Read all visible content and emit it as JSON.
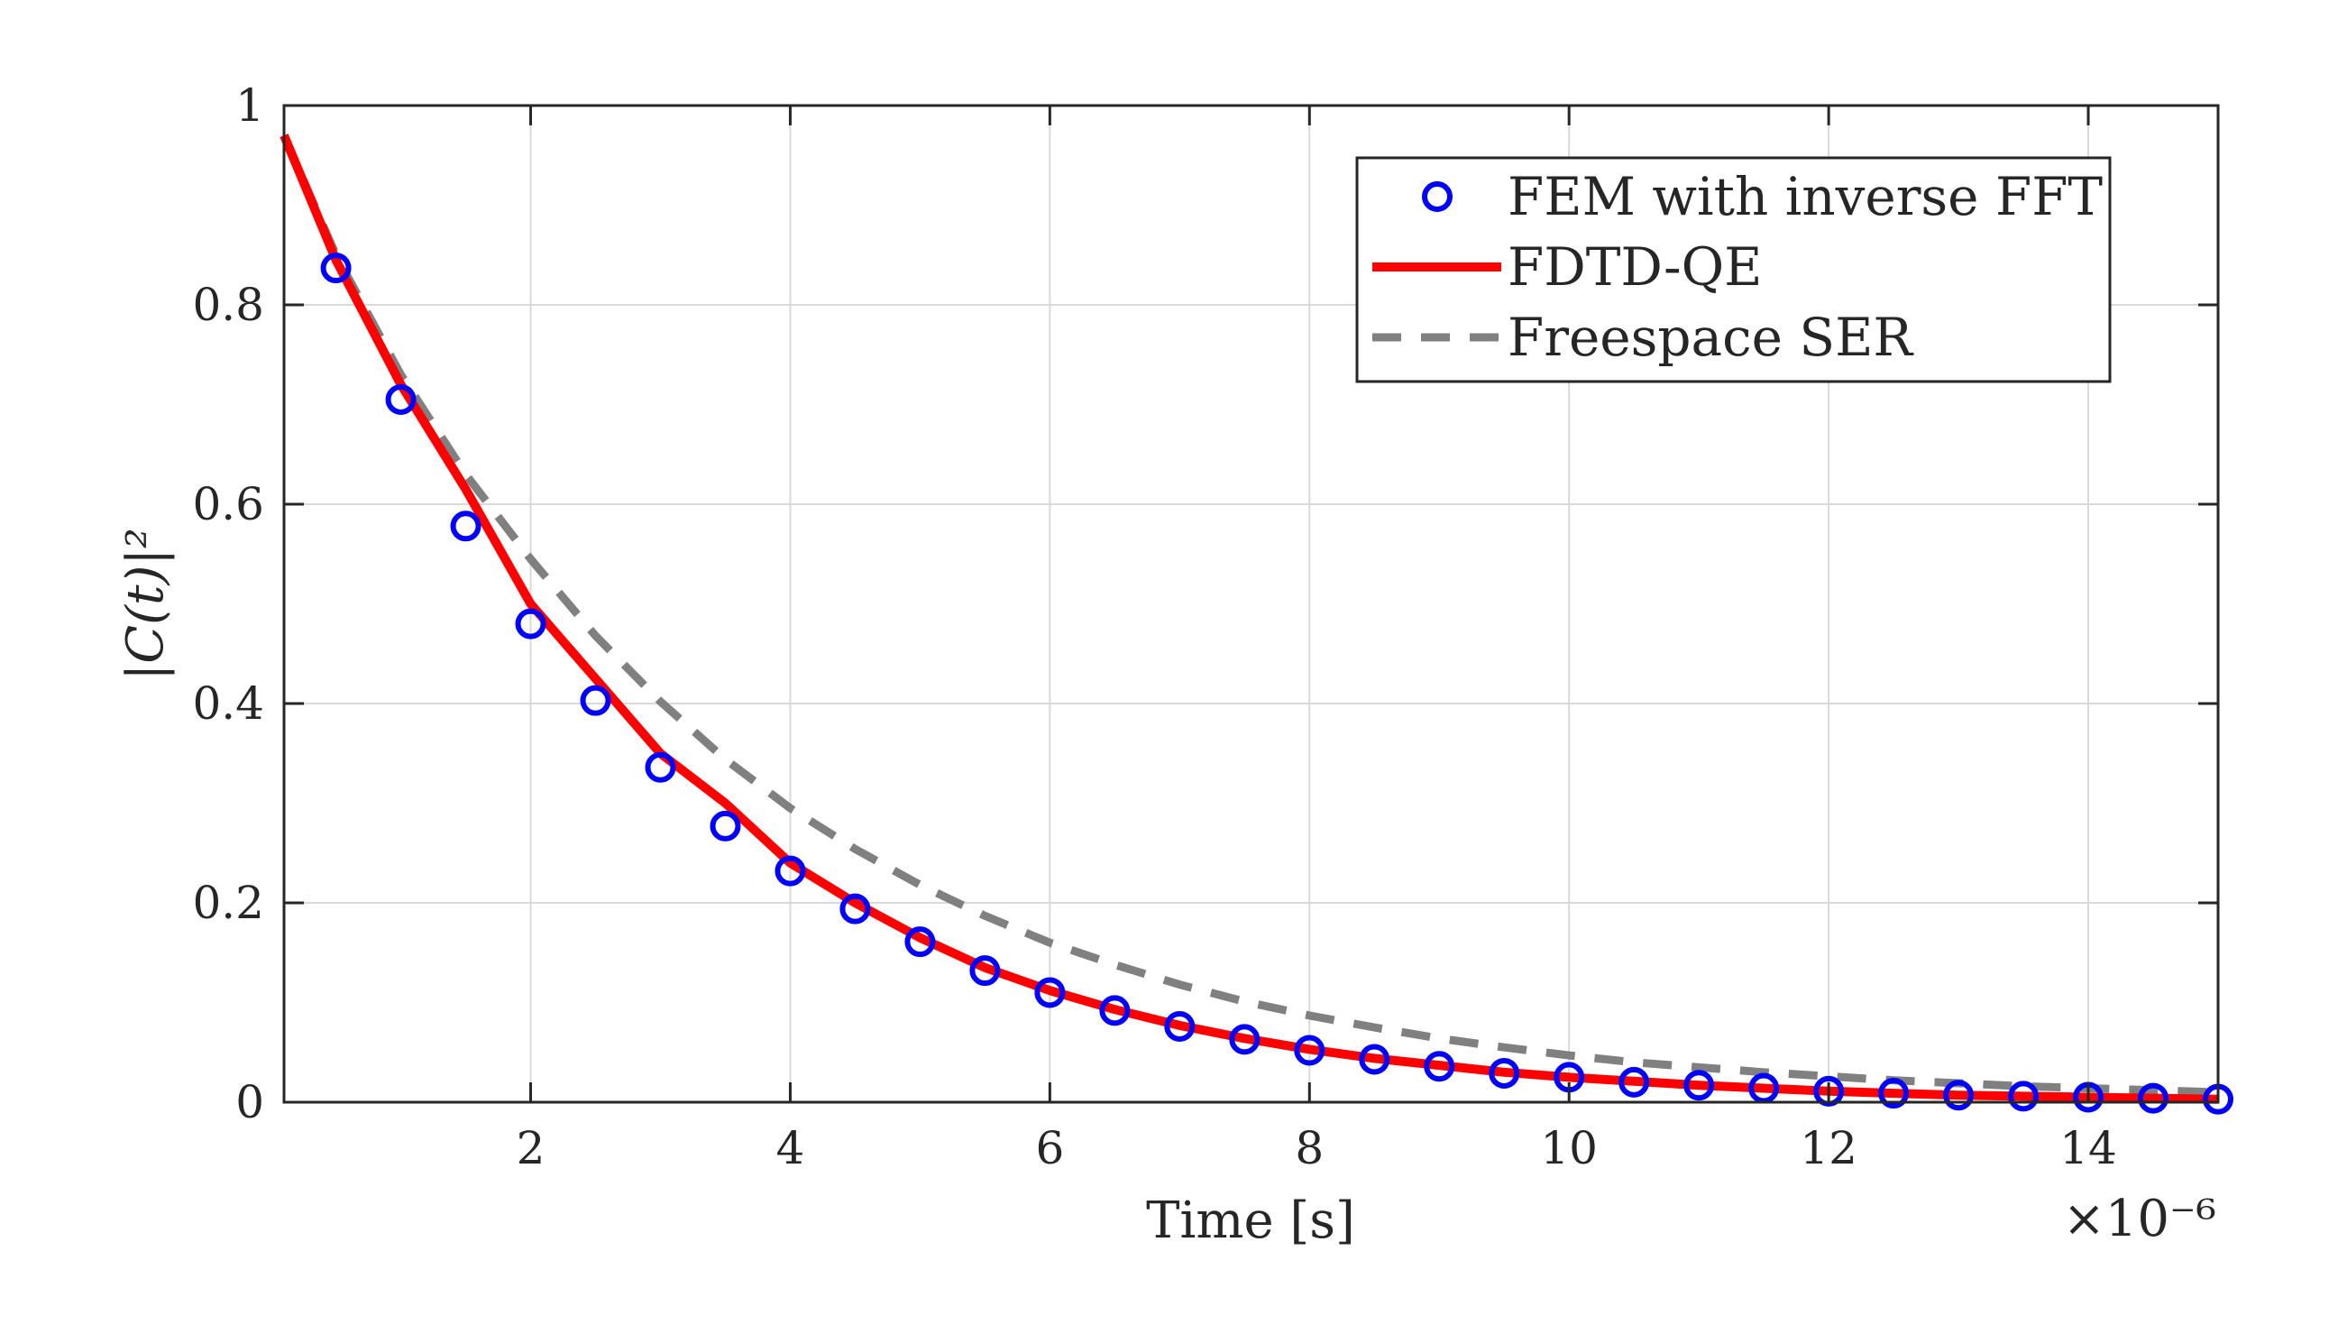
{
  "chart_data": {
    "type": "line",
    "title": "",
    "xlabel": "Time [s]",
    "ylabel": "|C(t)|²",
    "x_exponent_label": "×10⁻⁶",
    "xlim": [
      0.1,
      15
    ],
    "ylim": [
      0,
      1
    ],
    "xticks": [
      2,
      4,
      6,
      8,
      10,
      12,
      14
    ],
    "xtick_labels": [
      "2",
      "4",
      "6",
      "8",
      "10",
      "12",
      "14"
    ],
    "yticks": [
      0,
      0.2,
      0.4,
      0.6,
      0.8,
      1
    ],
    "ytick_labels": [
      "0",
      "0.2",
      "0.4",
      "0.6",
      "0.8",
      "1"
    ],
    "grid": true,
    "legend_position": "top-right",
    "series": [
      {
        "name": "FEM with inverse FFT",
        "style": "markers",
        "color": "#0000ff",
        "x": [
          0.5,
          1.0,
          1.5,
          2.0,
          2.5,
          3.0,
          3.5,
          4.0,
          4.5,
          5.0,
          5.5,
          6.0,
          6.5,
          7.0,
          7.5,
          8.0,
          8.5,
          9.0,
          9.5,
          10.0,
          10.5,
          11.0,
          11.5,
          12.0,
          12.5,
          13.0,
          13.5,
          14.0,
          14.5,
          15.0
        ],
        "values": [
          0.837,
          0.705,
          0.578,
          0.48,
          0.403,
          0.336,
          0.277,
          0.232,
          0.194,
          0.161,
          0.132,
          0.11,
          0.092,
          0.076,
          0.063,
          0.052,
          0.043,
          0.036,
          0.029,
          0.025,
          0.02,
          0.017,
          0.014,
          0.011,
          0.009,
          0.007,
          0.006,
          0.005,
          0.004,
          0.003
        ]
      },
      {
        "name": "FDTD-QE",
        "style": "solid",
        "color": "#ff0000",
        "x": [
          0.1,
          0.5,
          1.0,
          1.5,
          2.0,
          2.5,
          3.0,
          3.5,
          4.0,
          4.5,
          5.0,
          5.5,
          6.0,
          6.5,
          7.0,
          7.5,
          8.0,
          8.5,
          9.0,
          9.5,
          10.0,
          10.5,
          11.0,
          11.5,
          12.0,
          12.5,
          13.0,
          13.5,
          14.0,
          14.5,
          15.0
        ],
        "values": [
          0.97,
          0.845,
          0.72,
          0.615,
          0.5,
          0.425,
          0.35,
          0.3,
          0.24,
          0.2,
          0.165,
          0.135,
          0.112,
          0.093,
          0.077,
          0.064,
          0.053,
          0.044,
          0.037,
          0.03,
          0.025,
          0.021,
          0.017,
          0.014,
          0.011,
          0.009,
          0.007,
          0.006,
          0.005,
          0.004,
          0.003
        ]
      },
      {
        "name": "Freespace SER",
        "style": "dashed",
        "color": "#808080",
        "x": [
          0.1,
          0.5,
          1.0,
          1.5,
          2.0,
          2.5,
          3.0,
          3.5,
          4.0,
          4.5,
          5.0,
          5.5,
          6.0,
          6.5,
          7.0,
          7.5,
          8.0,
          8.5,
          9.0,
          9.5,
          10.0,
          10.5,
          11.0,
          11.5,
          12.0,
          12.5,
          13.0,
          13.5,
          14.0,
          14.5,
          15.0
        ],
        "values": [
          0.97,
          0.85,
          0.73,
          0.63,
          0.545,
          0.468,
          0.402,
          0.344,
          0.295,
          0.254,
          0.218,
          0.187,
          0.16,
          0.138,
          0.118,
          0.101,
          0.087,
          0.075,
          0.064,
          0.055,
          0.047,
          0.04,
          0.035,
          0.03,
          0.026,
          0.022,
          0.019,
          0.016,
          0.014,
          0.012,
          0.01
        ]
      }
    ]
  }
}
